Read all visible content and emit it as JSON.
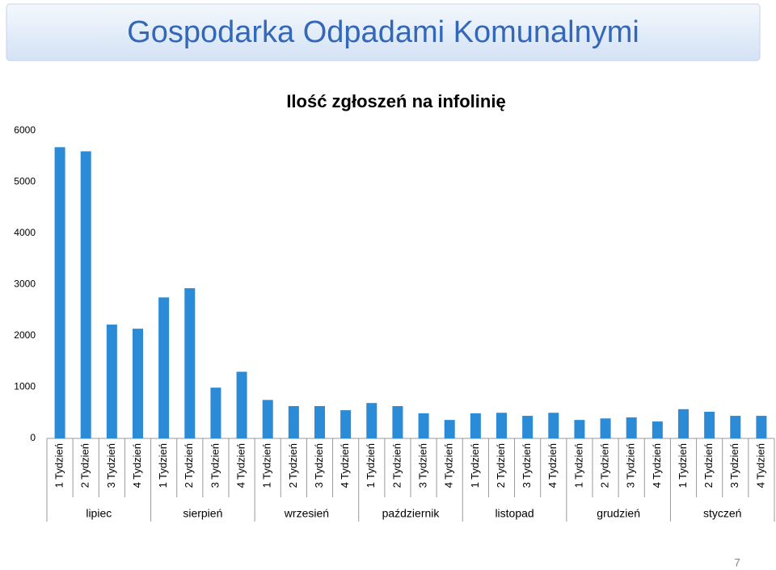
{
  "header": {
    "title": "Gospodarka Odpadami Komunalnymi"
  },
  "page_number": 7,
  "chart_data": {
    "type": "bar",
    "title": "Ilość zgłoszeń na infolinię",
    "categories": [
      "1 Tydzień",
      "2 Tydzień",
      "3 Tydzień",
      "4 Tydzień",
      "1 Tydzień",
      "2 Tydzień",
      "3 Tydzień",
      "4 Tydzień",
      "1 Tydzień",
      "2 Tydzień",
      "3 Tydzień",
      "4 Tydzień",
      "1 Tydzień",
      "2 Tydzień",
      "3 Tydzień",
      "4 Tydzień",
      "1 Tydzień",
      "2 Tydzień",
      "3 Tydzień",
      "4 Tydzień",
      "1 Tydzień",
      "2 Tydzień",
      "3 Tydzień",
      "4 Tydzień",
      "1 Tydzień",
      "2 Tydzień",
      "3 Tydzień",
      "4 Tydzień"
    ],
    "groups": [
      "lipiec",
      "sierpień",
      "wrzesień",
      "październik",
      "listopad",
      "grudzień",
      "styczeń"
    ],
    "values": [
      5680,
      5600,
      2220,
      2140,
      2750,
      2930,
      990,
      1300,
      750,
      630,
      630,
      550,
      690,
      630,
      490,
      360,
      490,
      500,
      440,
      500,
      360,
      390,
      410,
      330,
      570,
      520,
      440,
      440
    ],
    "color": "#2c8bd6",
    "ylim": [
      0,
      6000
    ],
    "yticks": [
      0,
      1000,
      2000,
      3000,
      4000,
      5000,
      6000
    ],
    "grid": false
  }
}
